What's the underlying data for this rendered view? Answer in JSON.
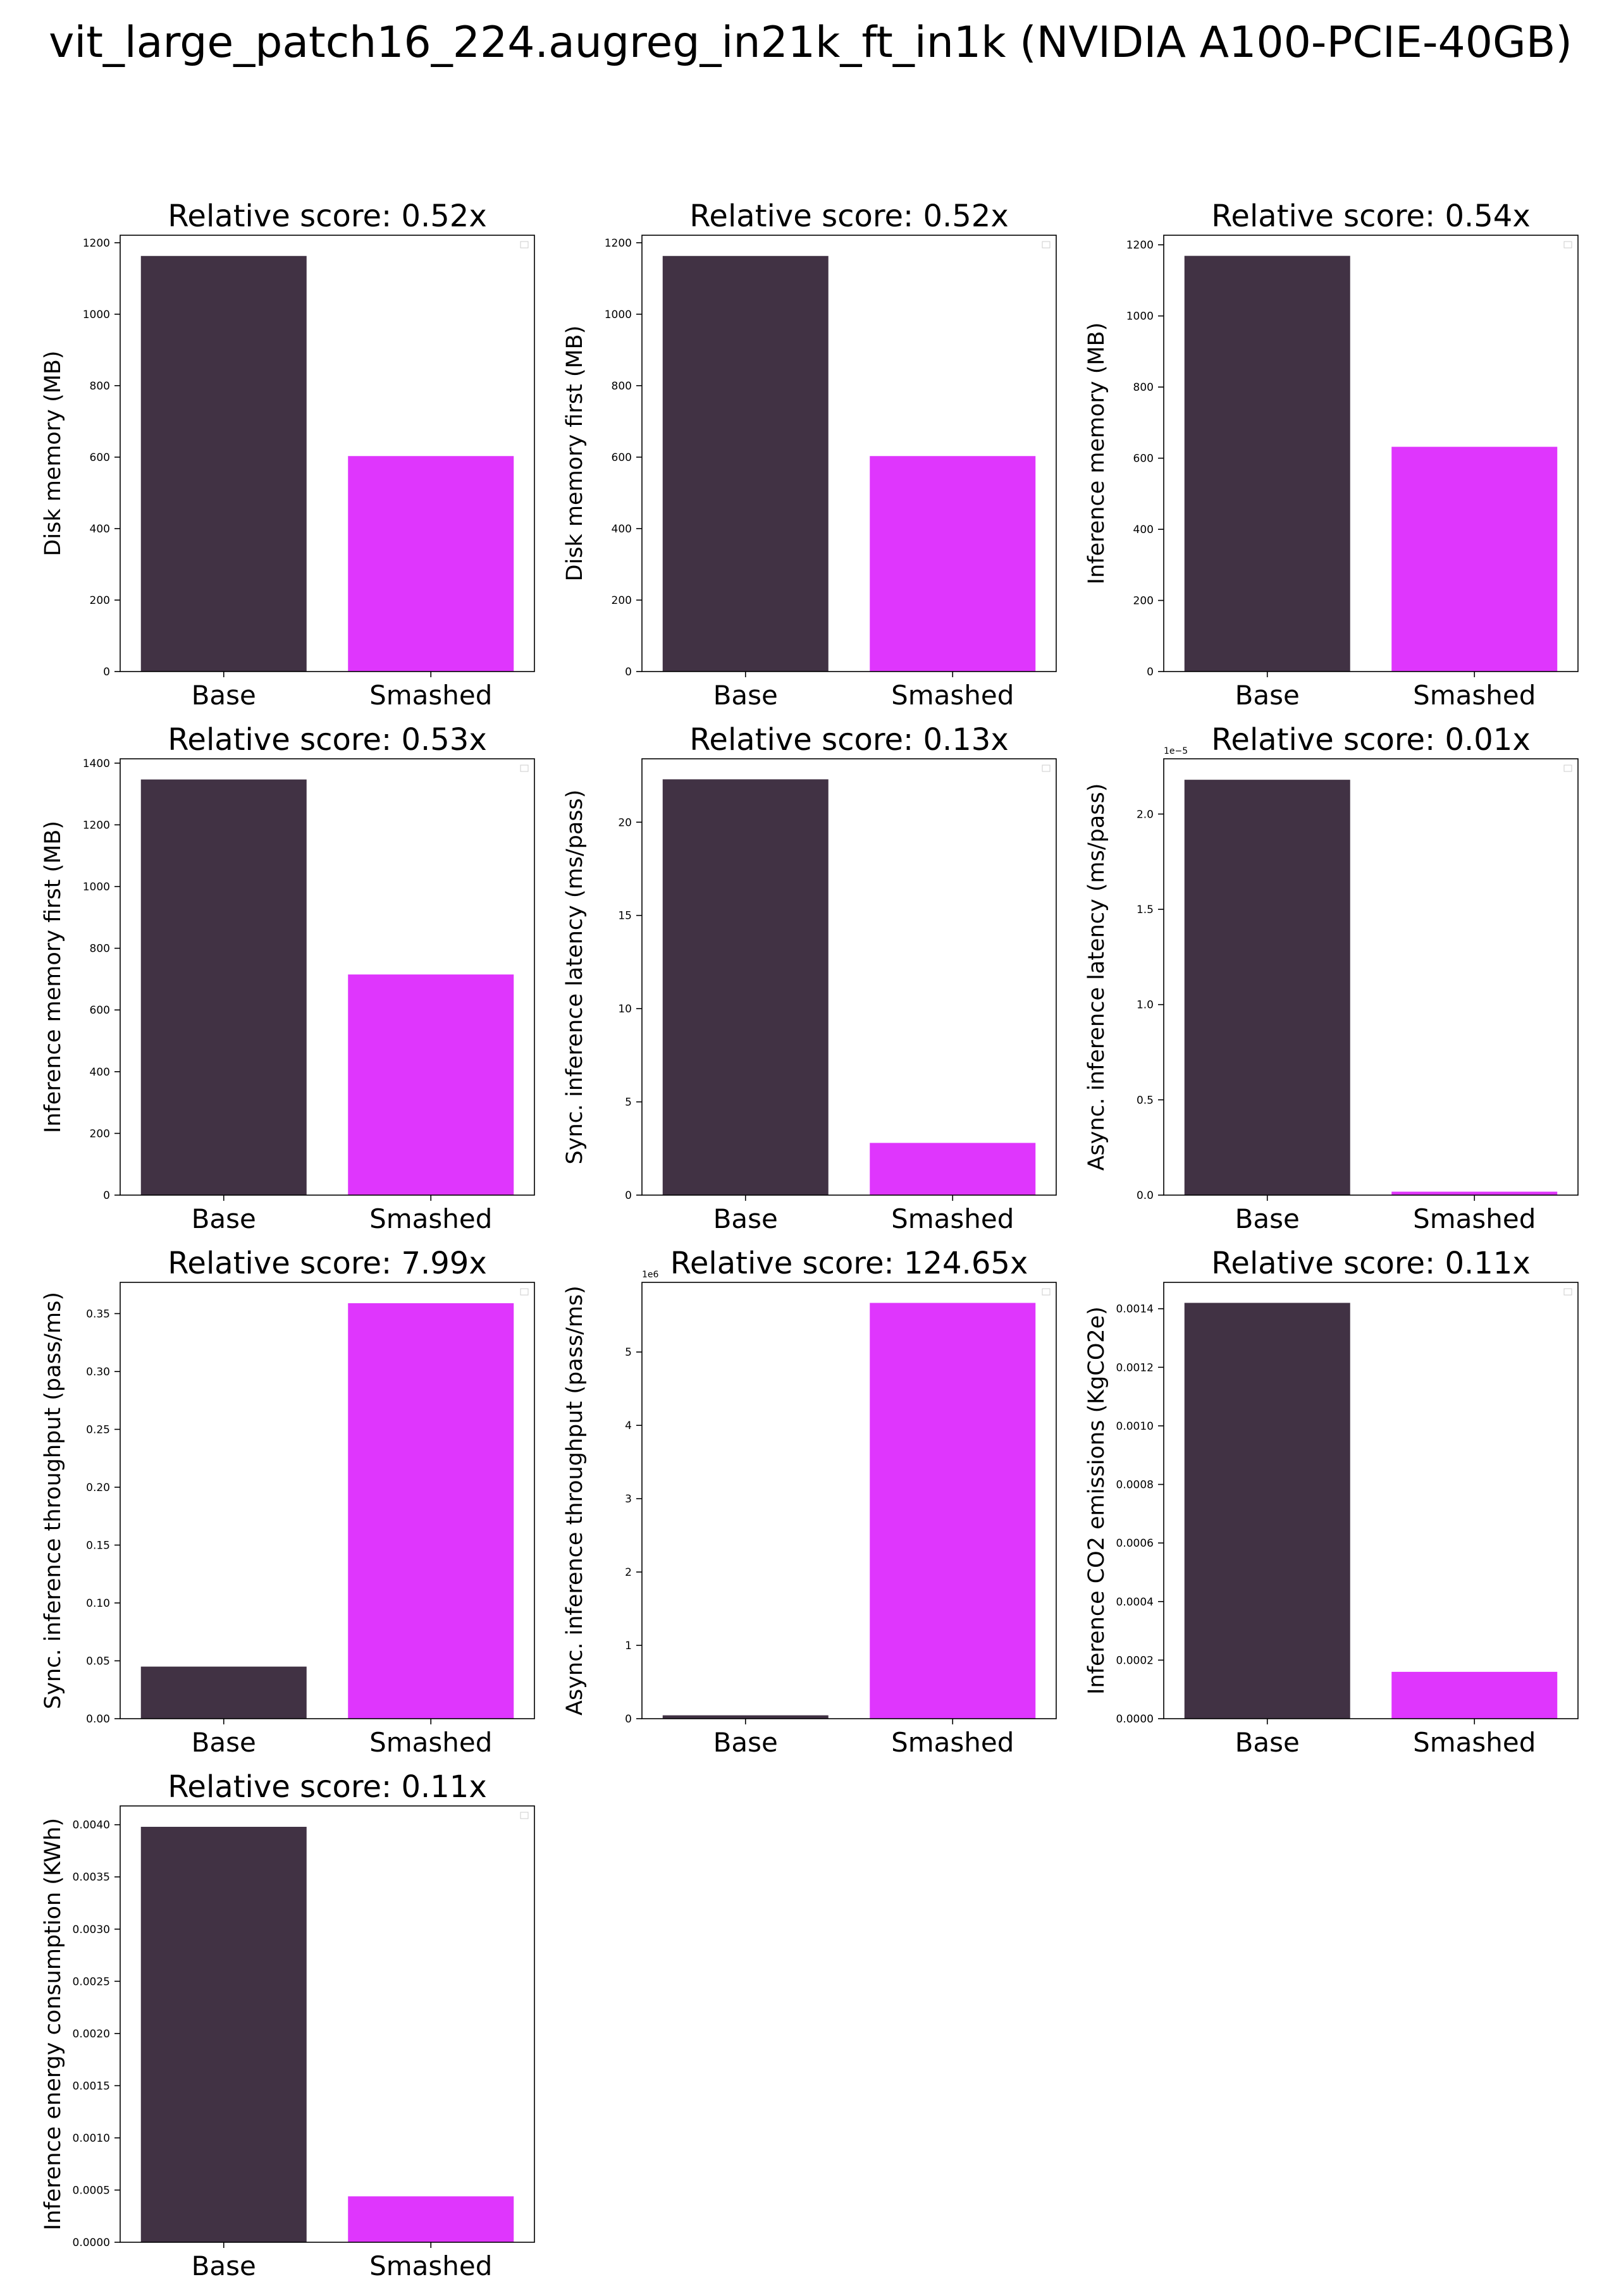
{
  "page": {
    "title": "vit_large_patch16_224.augreg_in21k_ft_in1k (NVIDIA A100-PCIE-40GB)"
  },
  "colors": {
    "base": "#413244",
    "smashed": "#df36fd",
    "axis": "#000000"
  },
  "chart_data": [
    {
      "type": "bar",
      "title": "Relative score: 0.52x",
      "ylabel": "Disk memory (MB)",
      "categories": [
        "Base",
        "Smashed"
      ],
      "values": [
        1163,
        603
      ],
      "ylim": [
        0,
        1221
      ],
      "yticks": [
        0,
        200,
        400,
        600,
        800,
        1000,
        1200
      ],
      "ytick_labels": [
        "0",
        "200",
        "400",
        "600",
        "800",
        "1000",
        "1200"
      ],
      "offset_label": ""
    },
    {
      "type": "bar",
      "title": "Relative score: 0.52x",
      "ylabel": "Disk memory first (MB)",
      "categories": [
        "Base",
        "Smashed"
      ],
      "values": [
        1163,
        603
      ],
      "ylim": [
        0,
        1221
      ],
      "yticks": [
        0,
        200,
        400,
        600,
        800,
        1000,
        1200
      ],
      "ytick_labels": [
        "0",
        "200",
        "400",
        "600",
        "800",
        "1000",
        "1200"
      ],
      "offset_label": ""
    },
    {
      "type": "bar",
      "title": "Relative score: 0.54x",
      "ylabel": "Inference memory (MB)",
      "categories": [
        "Base",
        "Smashed"
      ],
      "values": [
        1169,
        632
      ],
      "ylim": [
        0,
        1227
      ],
      "yticks": [
        0,
        200,
        400,
        600,
        800,
        1000,
        1200
      ],
      "ytick_labels": [
        "0",
        "200",
        "400",
        "600",
        "800",
        "1000",
        "1200"
      ],
      "offset_label": ""
    },
    {
      "type": "bar",
      "title": "Relative score: 0.53x",
      "ylabel": "Inference memory first (MB)",
      "categories": [
        "Base",
        "Smashed"
      ],
      "values": [
        1347,
        715
      ],
      "ylim": [
        0,
        1414
      ],
      "yticks": [
        0,
        200,
        400,
        600,
        800,
        1000,
        1200,
        1400
      ],
      "ytick_labels": [
        "0",
        "200",
        "400",
        "600",
        "800",
        "1000",
        "1200",
        "1400"
      ],
      "offset_label": ""
    },
    {
      "type": "bar",
      "title": "Relative score: 0.13x",
      "ylabel": "Sync. inference latency (ms/pass)",
      "categories": [
        "Base",
        "Smashed"
      ],
      "values": [
        22.3,
        2.8
      ],
      "ylim": [
        0,
        23.4
      ],
      "yticks": [
        0,
        5,
        10,
        15,
        20
      ],
      "ytick_labels": [
        "0",
        "5",
        "10",
        "15",
        "20"
      ],
      "offset_label": ""
    },
    {
      "type": "bar",
      "title": "Relative score: 0.01x",
      "ylabel": "Async. inference latency (ms/pass)",
      "categories": [
        "Base",
        "Smashed"
      ],
      "values": [
        2.18,
        0.018
      ],
      "ylim": [
        0,
        2.29
      ],
      "yticks": [
        0,
        0.5,
        1.0,
        1.5,
        2.0
      ],
      "ytick_labels": [
        "0.0",
        "0.5",
        "1.0",
        "1.5",
        "2.0"
      ],
      "offset_label": "1e−5"
    },
    {
      "type": "bar",
      "title": "Relative score: 7.99x",
      "ylabel": "Sync. inference throughput (pass/ms)",
      "categories": [
        "Base",
        "Smashed"
      ],
      "values": [
        0.045,
        0.359
      ],
      "ylim": [
        0,
        0.377
      ],
      "yticks": [
        0,
        0.05,
        0.1,
        0.15,
        0.2,
        0.25,
        0.3,
        0.35
      ],
      "ytick_labels": [
        "0.00",
        "0.05",
        "0.10",
        "0.15",
        "0.20",
        "0.25",
        "0.30",
        "0.35"
      ],
      "offset_label": ""
    },
    {
      "type": "bar",
      "title": "Relative score: 124.65x",
      "ylabel": "Async. inference throughput (pass/ms)",
      "categories": [
        "Base",
        "Smashed"
      ],
      "values": [
        0.046,
        5.67
      ],
      "ylim": [
        0,
        5.95
      ],
      "yticks": [
        0,
        1,
        2,
        3,
        4,
        5
      ],
      "ytick_labels": [
        "0",
        "1",
        "2",
        "3",
        "4",
        "5"
      ],
      "offset_label": "1e6"
    },
    {
      "type": "bar",
      "title": "Relative score: 0.11x",
      "ylabel": "Inference CO2 emissions (KgCO2e)",
      "categories": [
        "Base",
        "Smashed"
      ],
      "values": [
        0.00142,
        0.00016
      ],
      "ylim": [
        0,
        0.00149
      ],
      "yticks": [
        0,
        0.0002,
        0.0004,
        0.0006,
        0.0008,
        0.001,
        0.0012,
        0.0014
      ],
      "ytick_labels": [
        "0.0000",
        "0.0002",
        "0.0004",
        "0.0006",
        "0.0008",
        "0.0010",
        "0.0012",
        "0.0014"
      ],
      "offset_label": ""
    },
    {
      "type": "bar",
      "title": "Relative score: 0.11x",
      "ylabel": "Inference energy consumption (KWh)",
      "categories": [
        "Base",
        "Smashed"
      ],
      "values": [
        0.00398,
        0.00044
      ],
      "ylim": [
        0,
        0.00418
      ],
      "yticks": [
        0,
        0.0005,
        0.001,
        0.0015,
        0.002,
        0.0025,
        0.003,
        0.0035,
        0.004
      ],
      "ytick_labels": [
        "0.0000",
        "0.0005",
        "0.0010",
        "0.0015",
        "0.0020",
        "0.0025",
        "0.0030",
        "0.0035",
        "0.0040"
      ],
      "offset_label": ""
    }
  ]
}
